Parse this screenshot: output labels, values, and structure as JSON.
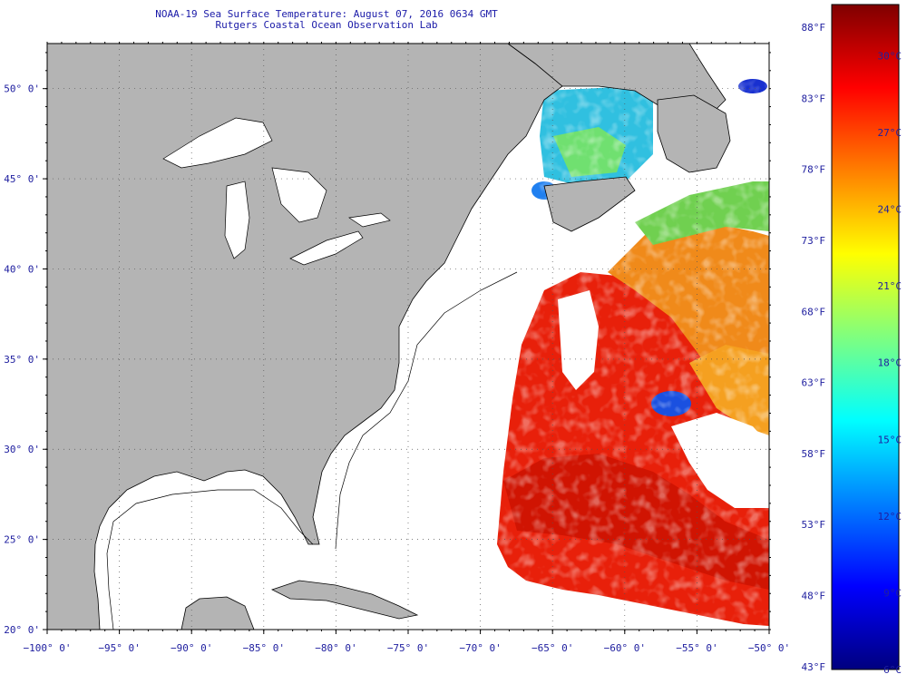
{
  "title": {
    "line1": "NOAA-19 Sea Surface Temperature:  August 07, 2016 0634 GMT",
    "line2": "Rutgers Coastal Ocean Observation Lab"
  },
  "map": {
    "lon_range": [
      -100,
      -50
    ],
    "lat_range": [
      20,
      52.5
    ],
    "land_color": "#b4b4b4",
    "no_data_color": "#ffffff",
    "gridlines": "dotted",
    "lat_ticks": [
      {
        "value": 50,
        "label": "50° 0'"
      },
      {
        "value": 45,
        "label": "45° 0'"
      },
      {
        "value": 40,
        "label": "40° 0'"
      },
      {
        "value": 35,
        "label": "35° 0'"
      },
      {
        "value": 30,
        "label": "30° 0'"
      },
      {
        "value": 25,
        "label": "25° 0'"
      },
      {
        "value": 20,
        "label": "20° 0'"
      }
    ],
    "lon_ticks": [
      {
        "value": -100,
        "label": "−100° 0'"
      },
      {
        "value": -95,
        "label": "−95° 0'"
      },
      {
        "value": -90,
        "label": "−90° 0'"
      },
      {
        "value": -85,
        "label": "−85° 0'"
      },
      {
        "value": -80,
        "label": "−80° 0'"
      },
      {
        "value": -75,
        "label": "−75° 0'"
      },
      {
        "value": -70,
        "label": "−70° 0'"
      },
      {
        "value": -65,
        "label": "−65° 0'"
      },
      {
        "value": -60,
        "label": "−60° 0'"
      },
      {
        "value": -55,
        "label": "−55° 0'"
      },
      {
        "value": -50,
        "label": "−50° 0'"
      }
    ]
  },
  "colorbar": {
    "range_c": [
      6,
      32
    ],
    "colormap": [
      "#00007f",
      "#0000ff",
      "#007fff",
      "#00ffff",
      "#7fff7f",
      "#ffff00",
      "#ff7f00",
      "#ff0000",
      "#7f0000"
    ],
    "f_labels": [
      {
        "value": 88,
        "label": "88°F"
      },
      {
        "value": 83,
        "label": "83°F"
      },
      {
        "value": 78,
        "label": "78°F"
      },
      {
        "value": 73,
        "label": "73°F"
      },
      {
        "value": 68,
        "label": "68°F"
      },
      {
        "value": 63,
        "label": "63°F"
      },
      {
        "value": 58,
        "label": "58°F"
      },
      {
        "value": 53,
        "label": "53°F"
      },
      {
        "value": 48,
        "label": "48°F"
      },
      {
        "value": 43,
        "label": "43°F"
      }
    ],
    "c_labels": [
      {
        "value": 30,
        "label": "30°C"
      },
      {
        "value": 27,
        "label": "27°C"
      },
      {
        "value": 24,
        "label": "24°C"
      },
      {
        "value": 21,
        "label": "21°C"
      },
      {
        "value": 18,
        "label": "18°C"
      },
      {
        "value": 15,
        "label": "15°C"
      },
      {
        "value": 12,
        "label": "12°C"
      },
      {
        "value": 9,
        "label": "9°C"
      },
      {
        "value": 6,
        "label": "6°C"
      }
    ]
  }
}
